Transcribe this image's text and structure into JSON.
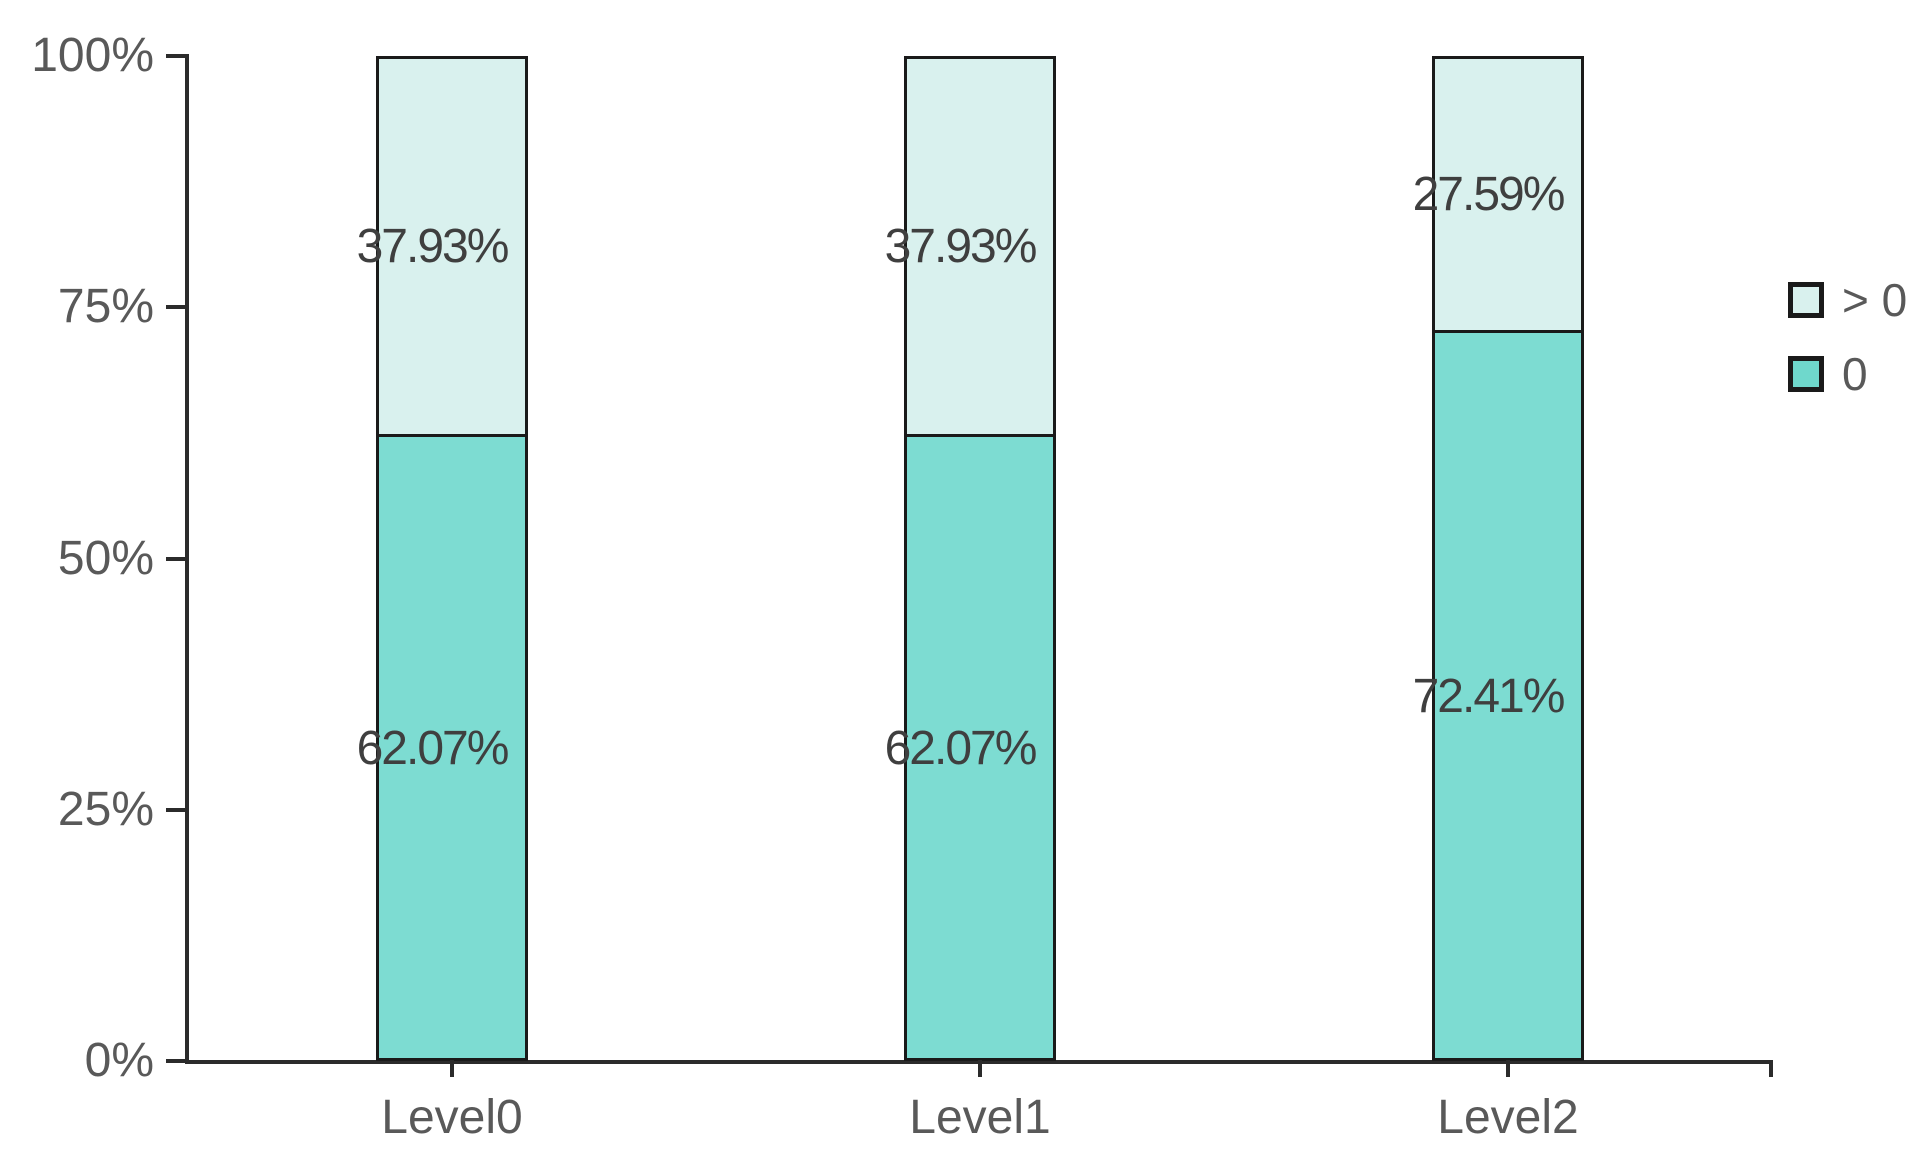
{
  "chart_data": {
    "type": "bar",
    "stacked": true,
    "units": "percent",
    "title": "",
    "xlabel": "",
    "ylabel": "",
    "categories": [
      "Level0",
      "Level1",
      "Level2"
    ],
    "series": [
      {
        "name": "0",
        "color": "#7DDCD2",
        "values": [
          62.07,
          62.07,
          72.41
        ],
        "labels": [
          "62.07%",
          "62.07%",
          "72.41%"
        ]
      },
      {
        "name": "> 0",
        "color": "#D9F1EE",
        "values": [
          37.93,
          37.93,
          27.59
        ],
        "labels": [
          "37.93%",
          "37.93%",
          "27.59%"
        ]
      }
    ],
    "ylim": [
      0,
      100
    ],
    "y_tick_values": [
      0,
      25,
      50,
      75,
      100
    ],
    "y_tick_labels": [
      "0%",
      "25%",
      "50%",
      "75%",
      "100%"
    ],
    "grid": false,
    "legend_position": "right",
    "legend": [
      {
        "label": "> 0",
        "color": "#D9F1EE"
      },
      {
        "label": "0",
        "color": "#6FD8CC"
      }
    ]
  },
  "style": {
    "background": "#FFFFFF",
    "axis_color": "#2B2B2B",
    "bar_border_color": "#1A1A1A",
    "tick_label_color": "#595959",
    "data_label_color": "#3F3F3F",
    "legend_text_color": "#595959"
  }
}
